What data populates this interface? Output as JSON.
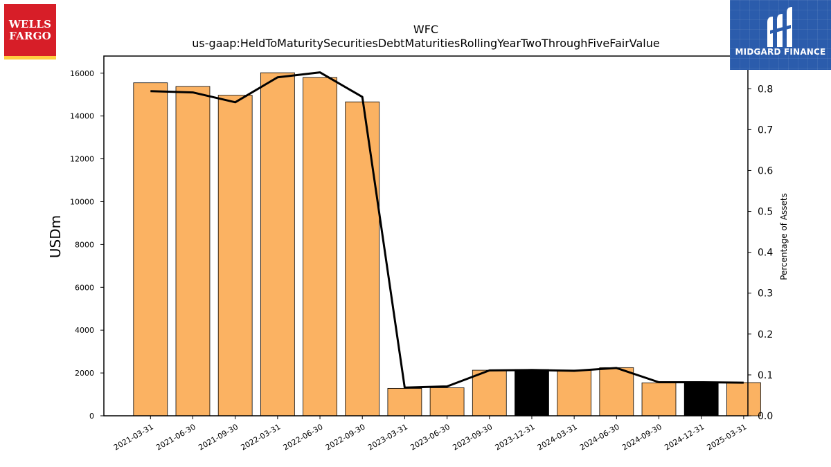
{
  "logos": {
    "left_line1": "WELLS",
    "left_line2": "FARGO",
    "right_text": "MIDGARD FINANCE"
  },
  "colors": {
    "bar_default": "#fbb262",
    "bar_highlight": "#000000",
    "line": "#000000",
    "wf_red": "#d71e28",
    "wf_gold": "#ffcd41",
    "midgard_blue": "#2b5cac"
  },
  "chart_data": {
    "type": "bar",
    "title": "WFC",
    "subtitle": "us-gaap:HeldToMaturitySecuritiesDebtMaturitiesRollingYearTwoThroughFiveFairValue",
    "ylabel": "USDm",
    "y2label": "Percentage of Assets",
    "categories": [
      "2021-03-31",
      "2021-06-30",
      "2021-09-30",
      "2022-03-31",
      "2022-06-30",
      "2022-09-30",
      "2023-03-31",
      "2023-06-30",
      "2023-09-30",
      "2023-12-31",
      "2024-03-31",
      "2024-06-30",
      "2024-09-30",
      "2024-12-31",
      "2025-03-31"
    ],
    "series": [
      {
        "axis": "left",
        "kind": "bar",
        "values": [
          15550,
          15380,
          14970,
          16020,
          15800,
          14660,
          1280,
          1310,
          2130,
          2160,
          2140,
          2250,
          1540,
          1560,
          1550
        ],
        "highlight": [
          false,
          false,
          false,
          false,
          false,
          false,
          false,
          false,
          false,
          true,
          false,
          false,
          false,
          true,
          false
        ]
      },
      {
        "axis": "right",
        "kind": "line",
        "values": [
          0.794,
          0.791,
          0.767,
          0.828,
          0.84,
          0.78,
          0.069,
          0.072,
          0.111,
          0.112,
          0.11,
          0.117,
          0.082,
          0.082,
          0.081
        ]
      }
    ],
    "ylim": [
      0,
      16800
    ],
    "yticks": [
      0,
      2000,
      4000,
      6000,
      8000,
      10000,
      12000,
      14000,
      16000
    ],
    "y2lim": [
      0,
      0.88
    ],
    "y2ticks": [
      "0.0",
      "0.1",
      "0.2",
      "0.3",
      "0.4",
      "0.5",
      "0.6",
      "0.7",
      "0.8"
    ],
    "grid": false,
    "legend": "none"
  }
}
